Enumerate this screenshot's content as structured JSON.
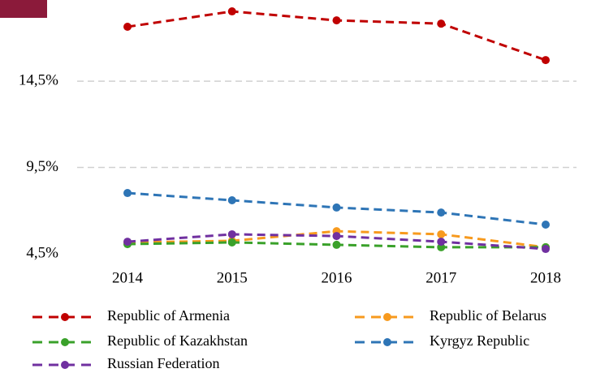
{
  "chart_data": {
    "type": "line",
    "categories": [
      "2014",
      "2015",
      "2016",
      "2017",
      "2018"
    ],
    "series": [
      {
        "name": "Republic of Armenia",
        "color": "#c00000",
        "values": [
          17.65,
          18.54,
          18.02,
          17.83,
          15.72
        ]
      },
      {
        "name": "Republic of Belarus",
        "color": "#f79a1e",
        "values": [
          5.16,
          5.25,
          5.81,
          5.63,
          4.88
        ]
      },
      {
        "name": "Republic of Kazakhstan",
        "color": "#3aa12a",
        "values": [
          5.06,
          5.16,
          5.02,
          4.88,
          4.88
        ]
      },
      {
        "name": "Kyrgyz Republic",
        "color": "#2e75b6",
        "values": [
          8.02,
          7.6,
          7.18,
          6.89,
          6.19
        ]
      },
      {
        "name": "Russian Federation",
        "color": "#7030a0",
        "values": [
          5.2,
          5.63,
          5.53,
          5.2,
          4.78
        ]
      }
    ],
    "ylim": [
      4.5,
      19.2
    ],
    "yticks": [
      {
        "value": 4.5,
        "label": "4,5%"
      },
      {
        "value": 9.5,
        "label": "9,5%"
      },
      {
        "value": 14.5,
        "label": "14,5%"
      }
    ],
    "grid": true,
    "legend": "bottom"
  }
}
